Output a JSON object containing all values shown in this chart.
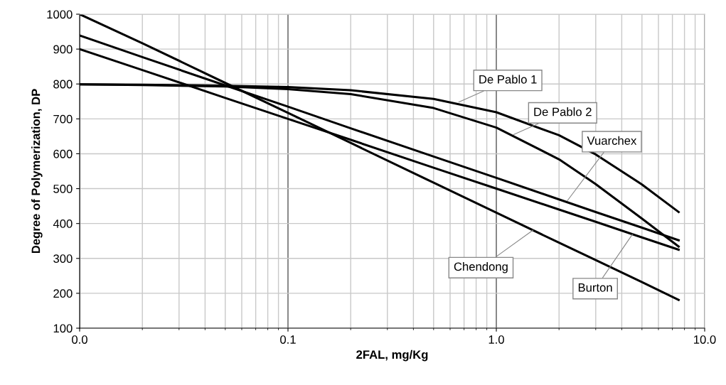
{
  "chart_data": {
    "type": "line",
    "xlabel": "2FAL, mg/Kg",
    "ylabel": "Degree of Polymerization, DP",
    "log": "x",
    "x": [
      0.01,
      0.02,
      0.05,
      0.1,
      0.2,
      0.5,
      1,
      2,
      3,
      5,
      7.5
    ],
    "series": [
      {
        "color": "#000000",
        "values": [
          799,
          798,
          795,
          791,
          782,
          757,
          719,
          653,
          598,
          512,
          433
        ]
      },
      {
        "color": "#000000",
        "values": [
          799,
          797,
          793,
          785,
          771,
          731,
          675,
          584,
          513,
          414,
          334
        ]
      },
      {
        "color": "#000000",
        "values": [
          939,
          877,
          796,
          735,
          673,
          592,
          531,
          469,
          433,
          388,
          352
        ]
      },
      {
        "color": "#000000",
        "values": [
          1000,
          917,
          803,
          717,
          631,
          517,
          431,
          345,
          295,
          232,
          181
        ]
      },
      {
        "color": "#000000",
        "values": [
          900,
          840,
          760,
          700,
          640,
          560,
          500,
          440,
          405,
          360,
          325
        ]
      }
    ],
    "xlim": [
      0.01,
      10
    ],
    "xticks": [
      {
        "value": 0.01,
        "label": "0.0"
      },
      {
        "value": 0.1,
        "label": "0.1"
      },
      {
        "value": 1,
        "label": "1.0"
      },
      {
        "value": 10,
        "label": "10.0"
      }
    ],
    "ylim": [
      100,
      1000
    ],
    "yticks": [
      100,
      200,
      300,
      400,
      500,
      600,
      700,
      800,
      900,
      1000
    ],
    "grid": true,
    "legend": false,
    "marker": "none",
    "line_style": "solid",
    "annotations": [
      {
        "text": "De Pablo 1",
        "x": 0.66,
        "y": 748
      },
      {
        "text": "De Pablo 2",
        "x": 1.21,
        "y": 655
      },
      {
        "text": "Vuarchex",
        "x": 2.19,
        "y": 465
      },
      {
        "text": "Chendong",
        "x": 1.5,
        "y": 381
      },
      {
        "text": "Burton",
        "x": 4.5,
        "y": 369
      }
    ]
  }
}
